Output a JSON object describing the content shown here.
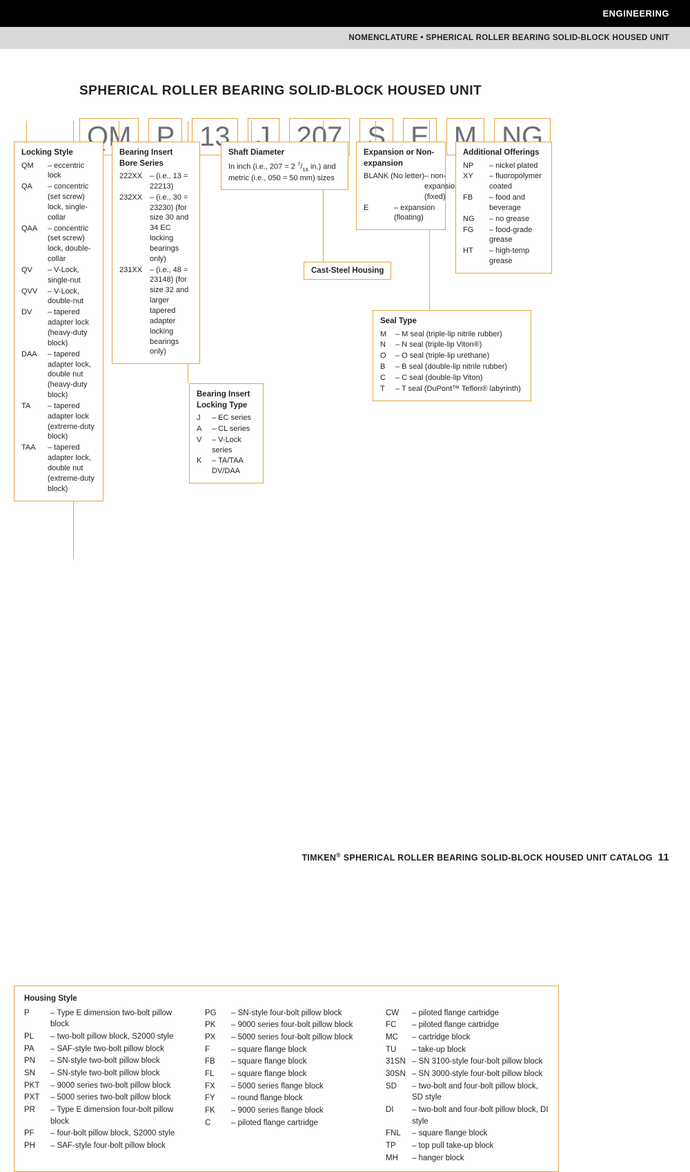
{
  "header": {
    "category": "ENGINEERING",
    "subhead": "NOMENCLATURE • SPHERICAL ROLLER BEARING SOLID-BLOCK HOUSED UNIT"
  },
  "title": "SPHERICAL ROLLER BEARING SOLID-BLOCK HOUSED UNIT",
  "codes": [
    "QM",
    "P",
    "13",
    "J",
    "207",
    "S",
    "E",
    "M",
    "NG"
  ],
  "colors": {
    "accent": "#e8a33d",
    "text": "#231f20",
    "code_text": "#6d6e71"
  },
  "locking_style": {
    "title": "Locking Style",
    "items": [
      {
        "code": "QM",
        "desc": "eccentric lock"
      },
      {
        "code": "QA",
        "desc": "concentric (set screw) lock, single-collar"
      },
      {
        "code": "QAA",
        "desc": "concentric (set screw) lock, double-collar"
      },
      {
        "code": "QV",
        "desc": "V-Lock, single-nut"
      },
      {
        "code": "QVV",
        "desc": "V-Lock, double-nut"
      },
      {
        "code": "DV",
        "desc": "tapered adapter lock (heavy-duty block)"
      },
      {
        "code": "DAA",
        "desc": "tapered adapter lock, double nut (heavy-duty block)"
      },
      {
        "code": "TA",
        "desc": "tapered adapter lock (extreme-duty block)"
      },
      {
        "code": "TAA",
        "desc": "tapered adapter lock, double nut (extreme-duty block)"
      }
    ]
  },
  "bore_series": {
    "title": "Bearing Insert Bore Series",
    "items": [
      {
        "code": "222XX",
        "desc": "(i.e., 13 = 22213)"
      },
      {
        "code": "232XX",
        "desc": "(i.e., 30 = 23230) (for size 30 and 34 EC locking bearings only)"
      },
      {
        "code": "231XX",
        "desc": "(i.e., 48 = 23148) (for size 32 and larger tapered adapter locking bearings only)"
      }
    ]
  },
  "locking_type": {
    "title": "Bearing Insert Locking Type",
    "items": [
      {
        "code": "J",
        "desc": "EC series"
      },
      {
        "code": "A",
        "desc": "CL series"
      },
      {
        "code": "V",
        "desc": "V-Lock series"
      },
      {
        "code": "K",
        "desc": "TA/TAA DV/DAA"
      }
    ]
  },
  "shaft_diameter": {
    "title": "Shaft Diameter",
    "text": "In inch (i.e., 207 = 2 7/16 in.) and metric (i.e., 050 = 50 mm) sizes"
  },
  "cast_steel": "Cast-Steel Housing",
  "expansion": {
    "title": "Expansion or Non-expansion",
    "items": [
      {
        "code": "BLANK (No letter)",
        "desc": "non-expansion (fixed)"
      },
      {
        "code": "E",
        "desc": "expansion (floating)"
      }
    ]
  },
  "seal_type": {
    "title": "Seal Type",
    "items": [
      {
        "code": "M",
        "desc": "M seal (triple-lip nitrile rubber)"
      },
      {
        "code": "N",
        "desc": "N seal (triple-lip Viton®)"
      },
      {
        "code": "O",
        "desc": "O seal (triple-lip urethane)"
      },
      {
        "code": "B",
        "desc": "B seal (double-lip nitrile rubber)"
      },
      {
        "code": "C",
        "desc": "C seal (double-lip Viton)"
      },
      {
        "code": "T",
        "desc": "T seal (DuPont™ Teflon® labyrinth)"
      }
    ]
  },
  "additional": {
    "title": "Additional Offerings",
    "items": [
      {
        "code": "NP",
        "desc": "nickel plated"
      },
      {
        "code": "XY",
        "desc": "fluoropolymer coated"
      },
      {
        "code": "FB",
        "desc": "food and beverage"
      },
      {
        "code": "NG",
        "desc": "no grease"
      },
      {
        "code": "FG",
        "desc": "food-grade grease"
      },
      {
        "code": "HT",
        "desc": "high-temp grease"
      }
    ]
  },
  "housing": {
    "title": "Housing Style",
    "col1": [
      {
        "code": "P",
        "desc": "Type E dimension two-bolt pillow block"
      },
      {
        "code": "PL",
        "desc": "two-bolt pillow block, S2000 style"
      },
      {
        "code": "PA",
        "desc": "SAF-style two-bolt pillow block"
      },
      {
        "code": "PN",
        "desc": "SN-style two-bolt pillow block"
      },
      {
        "code": "SN",
        "desc": "SN-style two-bolt pillow block"
      },
      {
        "code": "PKT",
        "desc": "9000 series two-bolt pillow block"
      },
      {
        "code": "PXT",
        "desc": "5000 series two-bolt pillow block"
      },
      {
        "code": "PR",
        "desc": "Type E dimension four-bolt pillow block"
      },
      {
        "code": "PF",
        "desc": "four-bolt pillow block, S2000 style"
      },
      {
        "code": "PH",
        "desc": "SAF-style four-bolt pillow block"
      }
    ],
    "col2": [
      {
        "code": "PG",
        "desc": "SN-style four-bolt pillow block"
      },
      {
        "code": "PK",
        "desc": "9000 series four-bolt pillow block"
      },
      {
        "code": "PX",
        "desc": "5000 series four-bolt pillow block"
      },
      {
        "code": "F",
        "desc": "square flange block"
      },
      {
        "code": "FB",
        "desc": "square flange block"
      },
      {
        "code": "FL",
        "desc": "square flange block"
      },
      {
        "code": "FX",
        "desc": "5000 series flange block"
      },
      {
        "code": "FY",
        "desc": "round flange block"
      },
      {
        "code": "FK",
        "desc": "9000 series flange block"
      },
      {
        "code": "C",
        "desc": "piloted flange cartridge"
      }
    ],
    "col3": [
      {
        "code": "CW",
        "desc": "piloted flange cartridge"
      },
      {
        "code": "FC",
        "desc": "piloted flange cartridge"
      },
      {
        "code": "MC",
        "desc": "cartridge block"
      },
      {
        "code": "TU",
        "desc": "take-up block"
      },
      {
        "code": "31SN",
        "desc": "SN 3100-style four-bolt pillow block"
      },
      {
        "code": "30SN",
        "desc": "SN 3000-style four-bolt pillow block"
      },
      {
        "code": "SD",
        "desc": "two-bolt and four-bolt pillow block, SD style"
      },
      {
        "code": "DI",
        "desc": "two-bolt and four-bolt pillow block, DI style"
      },
      {
        "code": "FNL",
        "desc": "square flange block"
      },
      {
        "code": "TP",
        "desc": "top pull take-up block"
      },
      {
        "code": "MH",
        "desc": "hanger block"
      }
    ]
  },
  "footer": {
    "text": "TIMKEN® SPHERICAL ROLLER BEARING SOLID-BLOCK HOUSED UNIT CATALOG",
    "page": "11"
  }
}
